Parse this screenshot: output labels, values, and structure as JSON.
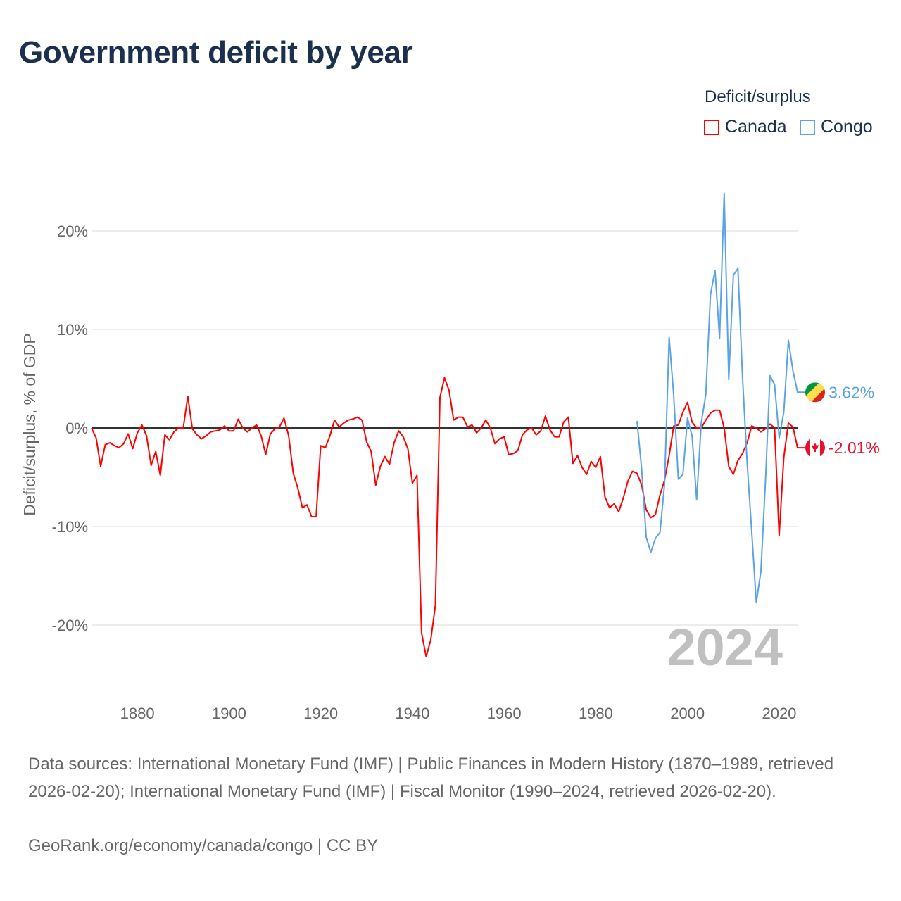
{
  "title": "Government deficit by year",
  "legend": {
    "title": "Deficit/surplus",
    "items": [
      {
        "name": "Canada",
        "color": "#ff0000"
      },
      {
        "name": "Congo",
        "color": "#5ba3e8"
      }
    ]
  },
  "chart_data": {
    "type": "line",
    "title": "Government deficit by year",
    "xlabel": "",
    "ylabel": "Deficit/surplus, % of GDP",
    "xlim": [
      1870,
      2024
    ],
    "ylim": [
      -25,
      25
    ],
    "xticks": [
      1880,
      1900,
      1920,
      1940,
      1960,
      1980,
      2000,
      2020
    ],
    "yticks": [
      {
        "v": 20,
        "label": "20%"
      },
      {
        "v": 10,
        "label": "10%"
      },
      {
        "v": 0,
        "label": "0%"
      },
      {
        "v": -10,
        "label": "-10%"
      },
      {
        "v": -20,
        "label": "-20%"
      }
    ],
    "grid": true,
    "legend_position": "top-right",
    "year_watermark": "2024",
    "series": [
      {
        "name": "Canada",
        "color": "#ff0000",
        "start_year": 1870,
        "end_label": "-2.01%",
        "values": [
          0,
          -1.0,
          -3.9,
          -1.7,
          -1.5,
          -1.8,
          -2.0,
          -1.6,
          -0.6,
          -2.1,
          -0.5,
          0.3,
          -0.8,
          -3.8,
          -2.4,
          -4.8,
          -0.7,
          -1.2,
          -0.4,
          0,
          0,
          3.2,
          -0.1,
          -0.7,
          -1.1,
          -0.8,
          -0.4,
          -0.3,
          -0.2,
          0.2,
          -0.3,
          -0.3,
          0.9,
          0,
          -0.4,
          0,
          0.3,
          -0.8,
          -2.7,
          -0.6,
          -0.1,
          0.1,
          1.0,
          -0.8,
          -4.6,
          -6.1,
          -8.1,
          -7.8,
          -9.0,
          -9.0,
          -1.8,
          -2.0,
          -0.8,
          0.8,
          0.1,
          0.5,
          0.8,
          0.9,
          1.1,
          0.8,
          -1.4,
          -2.4,
          -5.8,
          -3.9,
          -2.9,
          -3.7,
          -1.5,
          -0.3,
          -0.9,
          -2.1,
          -5.6,
          -4.8,
          -20.8,
          -23.2,
          -21.5,
          -18.0,
          3.1,
          5.1,
          3.8,
          0.8,
          1.1,
          1.1,
          0.1,
          0.3,
          -0.5,
          0,
          0.8,
          0,
          -1.6,
          -1.1,
          -0.9,
          -2.7,
          -2.6,
          -2.3,
          -0.7,
          -0.2,
          0,
          -0.7,
          -0.3,
          1.2,
          -0.2,
          -0.9,
          -0.9,
          0.6,
          1.1,
          -3.6,
          -2.8,
          -4.0,
          -4.7,
          -3.4,
          -4.0,
          -2.9,
          -7.0,
          -8.1,
          -7.7,
          -8.5,
          -7.1,
          -5.4,
          -4.4,
          -4.6,
          -5.8,
          -8.3,
          -9.1,
          -8.8,
          -6.8,
          -5.3,
          -2.8,
          0.2,
          0.3,
          1.6,
          2.6,
          0.6,
          0,
          0,
          0.8,
          1.5,
          1.8,
          1.8,
          0,
          -3.9,
          -4.7,
          -3.3,
          -2.6,
          -1.5,
          0.2,
          0,
          -0.4,
          -0.1,
          0.4,
          0,
          -10.9,
          -3.0,
          0.5,
          0.1,
          -2.01
        ]
      },
      {
        "name": "Congo",
        "color": "#5ba3e8",
        "start_year": 1989,
        "end_label": "3.62%",
        "values": [
          0.7,
          -4.2,
          -11.1,
          -12.6,
          -11.2,
          -10.6,
          -5.7,
          9.2,
          3.3,
          -5.2,
          -4.7,
          1.0,
          -0.8,
          -7.3,
          0.5,
          3.4,
          13.5,
          16.0,
          9.1,
          23.8,
          4.9,
          15.5,
          16.2,
          5.2,
          -3.5,
          -10.5,
          -17.7,
          -14.6,
          -5.5,
          5.3,
          4.4,
          -1.0,
          1.6,
          8.9,
          5.8,
          3.62
        ]
      }
    ]
  },
  "footer": {
    "sources": "Data sources: International Monetary Fund (IMF) | Public Finances in Modern History (1870–1989, retrieved 2026-02-20); International Monetary Fund (IMF) | Fiscal Monitor (1990–2024, retrieved 2026-02-20).",
    "credit": "GeoRank.org/economy/canada/congo | CC BY"
  }
}
